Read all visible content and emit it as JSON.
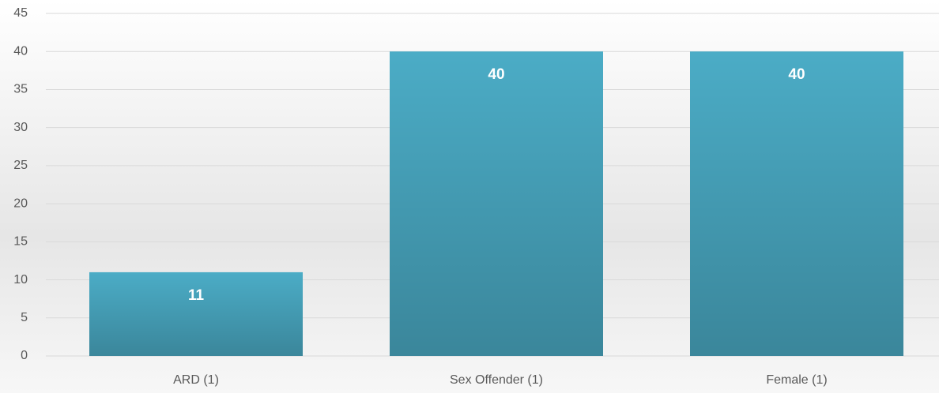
{
  "chart_data": {
    "type": "bar",
    "categories": [
      "ARD (1)",
      "Sex Offender (1)",
      "Female (1)"
    ],
    "values": [
      11,
      40,
      40
    ],
    "color": "#4bacc6",
    "ylim": [
      0,
      45
    ],
    "yticks": [
      0,
      5,
      10,
      15,
      20,
      25,
      30,
      35,
      40,
      45
    ],
    "grid": true
  }
}
